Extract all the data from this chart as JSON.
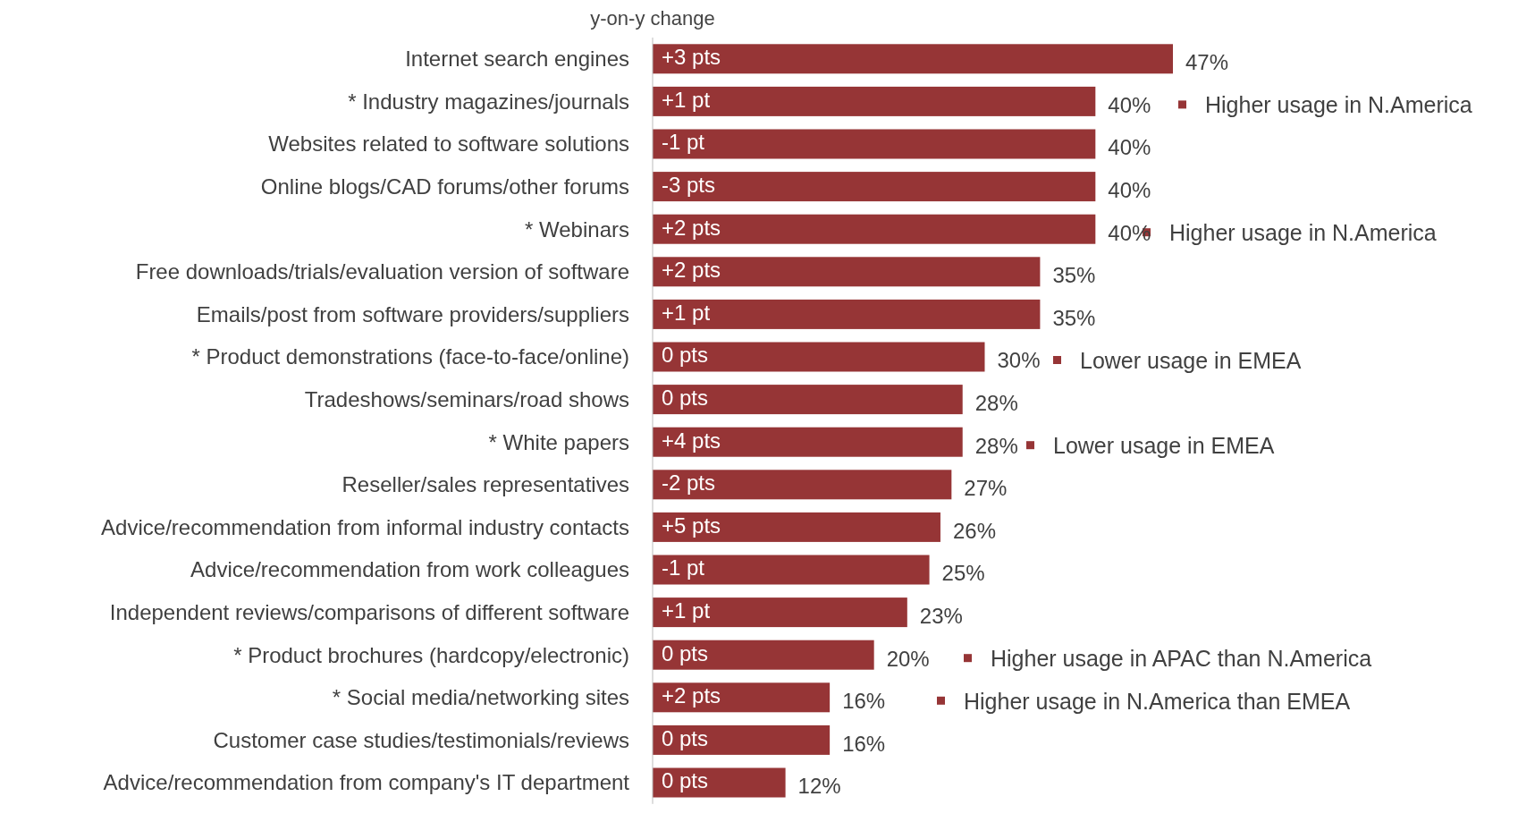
{
  "chart_data": {
    "type": "bar",
    "orientation": "horizontal",
    "color": "#963536",
    "categories": [
      "Internet search engines",
      "* Industry magazines/journals",
      "Websites related to software solutions",
      "Online blogs/CAD forums/other forums",
      "* Webinars",
      "Free downloads/trials/evaluation version of software",
      "Emails/post from software providers/suppliers",
      "* Product demonstrations (face-to-face/online)",
      "Tradeshows/seminars/road shows",
      "* White papers",
      "Reseller/sales representatives",
      "Advice/recommendation from informal industry contacts",
      "Advice/recommendation from work colleagues",
      "Independent reviews/comparisons of different software",
      "* Product brochures (hardcopy/electronic)",
      "* Social media/networking sites",
      "Customer case studies/testimonials/reviews",
      "Advice/recommendation from company's IT department"
    ],
    "values": [
      47,
      40,
      40,
      40,
      40,
      35,
      35,
      30,
      28,
      28,
      27,
      26,
      25,
      23,
      20,
      16,
      16,
      12
    ],
    "value_labels": [
      "47%",
      "40%",
      "40%",
      "40%",
      "40%",
      "35%",
      "35%",
      "30%",
      "28%",
      "28%",
      "27%",
      "26%",
      "25%",
      "23%",
      "20%",
      "16%",
      "16%",
      "12%"
    ],
    "annotations": [
      "y-on-y change",
      {
        "text": "+3 pts",
        "y": "Internet search engines"
      },
      {
        "text": "+1 pt",
        "y": "* Industry magazines/journals"
      },
      {
        "text": "-1 pt",
        "y": "Websites related to software solutions"
      },
      {
        "text": "-3 pts",
        "y": "Online blogs/CAD forums/other forums"
      },
      {
        "text": "+2 pts",
        "y": "* Webinars"
      },
      {
        "text": "+2 pts",
        "y": "Free downloads/trials/evaluation version of software"
      },
      {
        "text": "+1 pt",
        "y": "Emails/post from software providers/suppliers"
      },
      {
        "text": "0 pts",
        "y": "* Product demonstrations (face-to-face/online)"
      },
      {
        "text": "0 pts",
        "y": "Tradeshows/seminars/road shows"
      },
      {
        "text": "+4 pts",
        "y": "* White papers"
      },
      {
        "text": "-2 pts",
        "y": "Reseller/sales representatives"
      },
      {
        "text": "+5 pts",
        "y": "Advice/recommendation from informal industry contacts"
      },
      {
        "text": "-1 pt",
        "y": "Advice/recommendation from work colleagues"
      },
      {
        "text": "+1 pt",
        "y": "Independent reviews/comparisons of different software"
      },
      {
        "text": "0 pts",
        "y": "* Product brochures (hardcopy/electronic)"
      },
      {
        "text": "+2 pts",
        "y": "* Social media/networking sites"
      },
      {
        "text": "0 pts",
        "y": "Customer case studies/testimonials/reviews"
      },
      {
        "text": "0 pts",
        "y": "Advice/recommendation from company's IT department"
      },
      "Higher usage in N.America",
      "Higher usage in N.America",
      "Lower usage in EMEA",
      "Lower usage in EMEA",
      "Higher usage in APAC than N.America",
      "Higher usage in N.America than EMEA"
    ]
  }
}
